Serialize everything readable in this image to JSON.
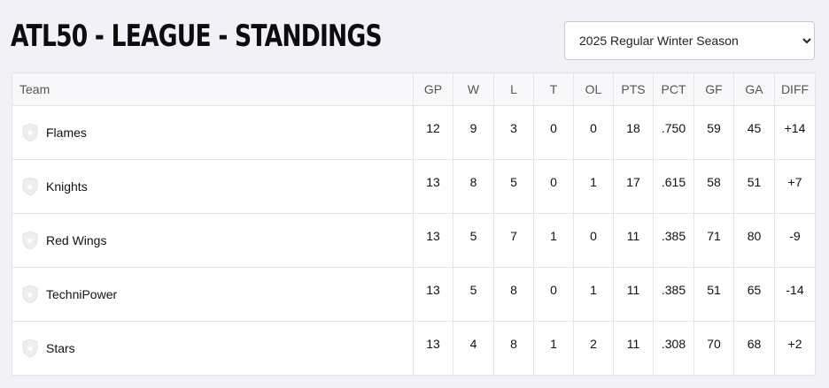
{
  "page": {
    "title": "ATL50 - LEAGUE - STANDINGS"
  },
  "season_select": {
    "selected": "2025 Regular Winter Season"
  },
  "table": {
    "headers": {
      "team": "Team",
      "gp": "GP",
      "w": "W",
      "l": "L",
      "t": "T",
      "ol": "OL",
      "pts": "PTS",
      "pct": "PCT",
      "gf": "GF",
      "ga": "GA",
      "diff": "DIFF"
    },
    "rows": [
      {
        "team": "Flames",
        "logo": "team-shield-icon",
        "gp": "12",
        "w": "9",
        "l": "3",
        "t": "0",
        "ol": "0",
        "pts": "18",
        "pct": ".750",
        "gf": "59",
        "ga": "45",
        "diff": "+14"
      },
      {
        "team": "Knights",
        "logo": "team-shield-icon",
        "gp": "13",
        "w": "8",
        "l": "5",
        "t": "0",
        "ol": "1",
        "pts": "17",
        "pct": ".615",
        "gf": "58",
        "ga": "51",
        "diff": "+7"
      },
      {
        "team": "Red Wings",
        "logo": "team-shield-icon",
        "gp": "13",
        "w": "5",
        "l": "7",
        "t": "1",
        "ol": "0",
        "pts": "11",
        "pct": ".385",
        "gf": "71",
        "ga": "80",
        "diff": "-9"
      },
      {
        "team": "TechniPower",
        "logo": "team-shield-icon",
        "gp": "13",
        "w": "5",
        "l": "8",
        "t": "0",
        "ol": "1",
        "pts": "11",
        "pct": ".385",
        "gf": "51",
        "ga": "65",
        "diff": "-14"
      },
      {
        "team": "Stars",
        "logo": "team-shield-icon",
        "gp": "13",
        "w": "4",
        "l": "8",
        "t": "1",
        "ol": "2",
        "pts": "11",
        "pct": ".308",
        "gf": "70",
        "ga": "68",
        "diff": "+2"
      }
    ]
  },
  "colors": {
    "page_background": "#f3f1f8",
    "table_border": "#e4e4ea",
    "header_background": "#f8f8fb"
  }
}
